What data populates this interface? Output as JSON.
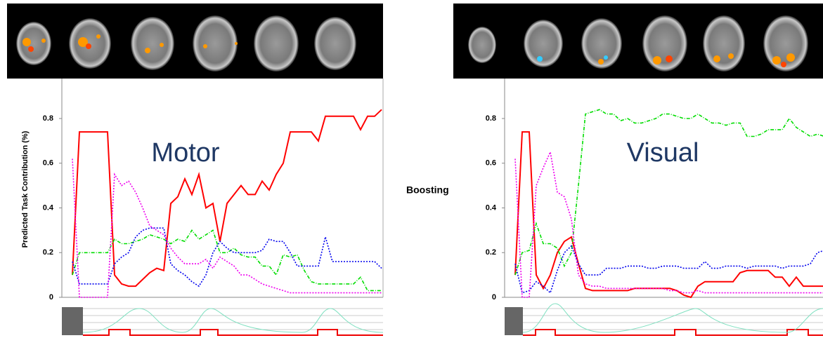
{
  "row_label": "Boosting",
  "chart_data": [
    {
      "type": "line",
      "ylabel": "Predicted Task Contribution (%)",
      "annotation": "Motor",
      "ylim": [
        0,
        0.96
      ],
      "yticks": [
        0,
        0.2,
        0.4,
        0.6,
        0.8
      ],
      "grid": false,
      "series": [
        {
          "color": "#ff0000",
          "line_style": "solid",
          "values": [
            0.1,
            0.74,
            0.74,
            0.74,
            0.74,
            0.74,
            0.1,
            0.06,
            0.05,
            0.05,
            0.08,
            0.11,
            0.13,
            0.12,
            0.42,
            0.45,
            0.53,
            0.46,
            0.55,
            0.4,
            0.42,
            0.25,
            0.42,
            0.46,
            0.5,
            0.46,
            0.46,
            0.52,
            0.48,
            0.55,
            0.6,
            0.74,
            0.74,
            0.74,
            0.74,
            0.7,
            0.81,
            0.81,
            0.81,
            0.81,
            0.81,
            0.75,
            0.81,
            0.81,
            0.84
          ]
        },
        {
          "color": "#00dd00",
          "line_style": "dash-dot",
          "values": [
            0.1,
            0.2,
            0.2,
            0.2,
            0.2,
            0.2,
            0.26,
            0.24,
            0.24,
            0.25,
            0.26,
            0.28,
            0.27,
            0.26,
            0.24,
            0.26,
            0.25,
            0.3,
            0.26,
            0.28,
            0.3,
            0.2,
            0.2,
            0.22,
            0.19,
            0.18,
            0.18,
            0.14,
            0.14,
            0.1,
            0.19,
            0.18,
            0.19,
            0.12,
            0.07,
            0.06,
            0.06,
            0.06,
            0.06,
            0.06,
            0.06,
            0.09,
            0.03,
            0.03,
            0.03
          ]
        },
        {
          "color": "#0000ee",
          "line_style": "dotted",
          "values": [
            0.16,
            0.06,
            0.06,
            0.06,
            0.06,
            0.06,
            0.15,
            0.18,
            0.2,
            0.27,
            0.3,
            0.31,
            0.31,
            0.31,
            0.15,
            0.12,
            0.1,
            0.07,
            0.05,
            0.1,
            0.2,
            0.25,
            0.22,
            0.2,
            0.2,
            0.2,
            0.2,
            0.21,
            0.26,
            0.25,
            0.25,
            0.2,
            0.14,
            0.14,
            0.14,
            0.14,
            0.27,
            0.16,
            0.16,
            0.16,
            0.16,
            0.16,
            0.16,
            0.16,
            0.13
          ]
        },
        {
          "color": "#ee00ee",
          "line_style": "dotted",
          "values": [
            0.62,
            0,
            0,
            0,
            0,
            0,
            0.55,
            0.5,
            0.52,
            0.47,
            0.4,
            0.32,
            0.3,
            0.28,
            0.22,
            0.18,
            0.15,
            0.15,
            0.15,
            0.17,
            0.13,
            0.18,
            0.16,
            0.14,
            0.1,
            0.1,
            0.08,
            0.06,
            0.05,
            0.04,
            0.03,
            0.02,
            0.02,
            0.02,
            0.02,
            0.02,
            0.02,
            0.02,
            0.02,
            0.02,
            0.02,
            0.02,
            0.02,
            0.02,
            0.02
          ]
        }
      ]
    },
    {
      "type": "line",
      "annotation": "Visual",
      "ylim": [
        0,
        0.96
      ],
      "yticks": [
        0,
        0.2,
        0.4,
        0.6,
        0.8
      ],
      "grid": false,
      "series": [
        {
          "color": "#ff0000",
          "line_style": "solid",
          "values": [
            0.1,
            0.74,
            0.74,
            0.1,
            0.04,
            0.1,
            0.2,
            0.25,
            0.27,
            0.15,
            0.04,
            0.03,
            0.03,
            0.03,
            0.03,
            0.03,
            0.03,
            0.04,
            0.04,
            0.04,
            0.04,
            0.04,
            0.04,
            0.03,
            0.01,
            0,
            0.05,
            0.07,
            0.07,
            0.07,
            0.07,
            0.07,
            0.11,
            0.12,
            0.12,
            0.12,
            0.12,
            0.09,
            0.09,
            0.05,
            0.09,
            0.05,
            0.05,
            0.05,
            0.05
          ]
        },
        {
          "color": "#00dd00",
          "line_style": "dash-dot",
          "values": [
            0.1,
            0.2,
            0.21,
            0.33,
            0.24,
            0.24,
            0.22,
            0.14,
            0.2,
            0.5,
            0.82,
            0.83,
            0.84,
            0.82,
            0.82,
            0.79,
            0.8,
            0.78,
            0.78,
            0.79,
            0.8,
            0.82,
            0.82,
            0.81,
            0.8,
            0.8,
            0.82,
            0.8,
            0.78,
            0.78,
            0.77,
            0.78,
            0.78,
            0.72,
            0.72,
            0.73,
            0.75,
            0.75,
            0.75,
            0.8,
            0.76,
            0.74,
            0.72,
            0.73,
            0.72
          ]
        },
        {
          "color": "#0000ee",
          "line_style": "dotted",
          "values": [
            0.15,
            0.02,
            0.03,
            0.07,
            0.05,
            0.02,
            0.12,
            0.2,
            0.23,
            0.15,
            0.1,
            0.1,
            0.1,
            0.13,
            0.13,
            0.13,
            0.14,
            0.14,
            0.14,
            0.13,
            0.13,
            0.14,
            0.14,
            0.14,
            0.13,
            0.13,
            0.13,
            0.16,
            0.13,
            0.13,
            0.14,
            0.14,
            0.14,
            0.13,
            0.14,
            0.14,
            0.14,
            0.14,
            0.13,
            0.14,
            0.14,
            0.14,
            0.15,
            0.2,
            0.21
          ]
        },
        {
          "color": "#ee00ee",
          "line_style": "dotted",
          "values": [
            0.62,
            0,
            0,
            0.5,
            0.58,
            0.65,
            0.47,
            0.45,
            0.35,
            0.1,
            0.06,
            0.05,
            0.05,
            0.04,
            0.04,
            0.04,
            0.04,
            0.04,
            0.04,
            0.04,
            0.04,
            0.04,
            0.03,
            0.03,
            0.02,
            0.02,
            0.03,
            0.02,
            0.02,
            0.02,
            0.02,
            0.02,
            0.02,
            0.02,
            0.02,
            0.02,
            0.02,
            0.02,
            0.02,
            0.02,
            0.02,
            0.02,
            0.02,
            0.02,
            0.02
          ]
        }
      ]
    }
  ]
}
